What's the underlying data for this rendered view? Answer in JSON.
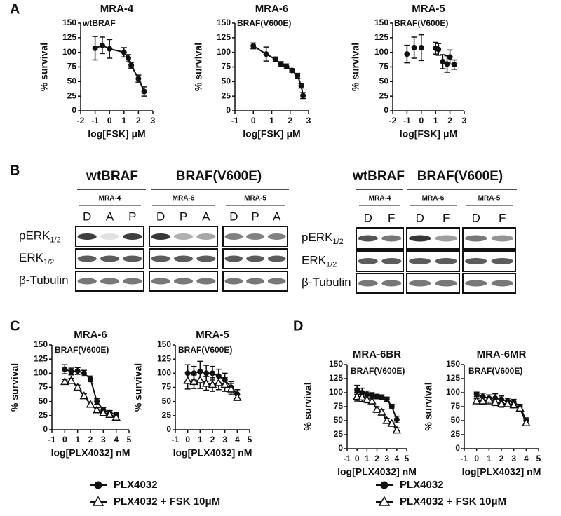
{
  "panel_labels": [
    "A",
    "B",
    "C",
    "D"
  ],
  "chart_data": [
    {
      "type": "line",
      "title": "MRA-4",
      "subtitle": "wtBRAF",
      "xlabel": "log[FSK] μM",
      "ylabel": "% survival",
      "xlim": [
        -2,
        3
      ],
      "xticks": [
        -2,
        -1,
        0,
        1,
        2,
        3
      ],
      "ylim": [
        0,
        150
      ],
      "yticks": [
        0,
        25,
        50,
        75,
        100,
        125,
        150
      ],
      "x": [
        -1,
        -0.5,
        0,
        1,
        1.3,
        1.5,
        2,
        2.4
      ],
      "values": [
        107,
        112,
        106,
        100,
        90,
        78,
        55,
        33
      ],
      "errors": [
        20,
        14,
        16,
        8,
        6,
        5,
        6,
        8
      ],
      "color": "#111111"
    },
    {
      "type": "line",
      "title": "MRA-6",
      "subtitle": "BRAF(V600E)",
      "xlabel": "log[FSK] μM",
      "ylabel": "% survival",
      "xlim": [
        -1,
        3
      ],
      "xticks": [
        -1,
        0,
        1,
        2,
        3
      ],
      "ylim": [
        0,
        150
      ],
      "yticks": [
        0,
        25,
        50,
        75,
        100,
        125,
        150
      ],
      "x": [
        0,
        0.7,
        1.2,
        1.5,
        1.8,
        2.1,
        2.4,
        2.6,
        2.7
      ],
      "values": [
        111,
        97,
        88,
        80,
        76,
        69,
        60,
        43,
        26
      ],
      "errors": [
        5,
        12,
        4,
        4,
        4,
        3,
        4,
        4,
        5
      ],
      "color": "#111111"
    },
    {
      "type": "scatter",
      "title": "MRA-5",
      "subtitle": "BRAF(V600E)",
      "xlabel": "log[FSK] μM",
      "ylabel": "% survival",
      "xlim": [
        -2,
        3
      ],
      "xticks": [
        -2,
        -1,
        0,
        1,
        2,
        3
      ],
      "ylim": [
        0,
        150
      ],
      "yticks": [
        0,
        25,
        50,
        75,
        100,
        125,
        150
      ],
      "x": [
        -1,
        -0.5,
        0,
        1,
        1.2,
        1.5,
        1.8,
        2,
        2.3
      ],
      "values": [
        97,
        108,
        108,
        107,
        105,
        84,
        80,
        92,
        79
      ],
      "errors": [
        15,
        18,
        22,
        10,
        10,
        12,
        14,
        12,
        8
      ],
      "color": "#111111"
    },
    {
      "type": "line",
      "title": "MRA-6",
      "subtitle": "BRAF(V600E)",
      "xlabel": "log[PLX4032] nM",
      "ylabel": "% survival",
      "xlim": [
        -1,
        5
      ],
      "xticks": [
        -1,
        0,
        1,
        2,
        3,
        4,
        5
      ],
      "ylim": [
        0,
        150
      ],
      "yticks": [
        0,
        25,
        50,
        75,
        100,
        125,
        150
      ],
      "legend": true,
      "series": [
        {
          "name": "PLX4032",
          "marker": "circle",
          "color": "#111111",
          "x": [
            0,
            0.5,
            1,
            1.5,
            2,
            2.5,
            3,
            3.5,
            4
          ],
          "values": [
            107,
            103,
            104,
            100,
            90,
            50,
            35,
            30,
            27
          ],
          "errors": [
            8,
            6,
            6,
            5,
            5,
            5,
            4,
            4,
            4
          ]
        },
        {
          "name": "PLX4032 + FSK 10μM",
          "marker": "triangle",
          "color": "#111111",
          "x": [
            0,
            0.5,
            1,
            1.5,
            2,
            2.5,
            3,
            3.5,
            4
          ],
          "values": [
            85,
            87,
            75,
            60,
            45,
            35,
            30,
            27,
            22
          ],
          "errors": [
            4,
            4,
            4,
            4,
            4,
            4,
            4,
            4,
            4
          ]
        }
      ]
    },
    {
      "type": "line",
      "title": "MRA-5",
      "subtitle": "BRAF(V600E)",
      "xlabel": "log[PLX4032] nM",
      "ylabel": "% survival",
      "xlim": [
        -1,
        5
      ],
      "xticks": [
        -1,
        0,
        1,
        2,
        3,
        4,
        5
      ],
      "ylim": [
        0,
        150
      ],
      "yticks": [
        0,
        25,
        50,
        75,
        100,
        125,
        150
      ],
      "series": [
        {
          "name": "PLX4032",
          "marker": "circle",
          "color": "#111111",
          "x": [
            0,
            0.5,
            1,
            1.5,
            2,
            2.5,
            3,
            3.5,
            4
          ],
          "values": [
            100,
            100,
            103,
            100,
            100,
            95,
            88,
            75,
            63
          ],
          "errors": [
            15,
            12,
            18,
            14,
            12,
            12,
            12,
            10,
            8
          ]
        },
        {
          "name": "PLX4032 + FSK 10μM",
          "marker": "triangle",
          "color": "#111111",
          "x": [
            0,
            0.5,
            1,
            1.5,
            2,
            2.5,
            3,
            3.5,
            4
          ],
          "values": [
            87,
            85,
            88,
            82,
            80,
            83,
            80,
            72,
            57
          ],
          "errors": [
            15,
            12,
            15,
            12,
            12,
            12,
            12,
            10,
            5
          ]
        }
      ]
    },
    {
      "type": "line",
      "title": "MRA-6BR",
      "subtitle": "BRAF(V600E)",
      "xlabel": "log[PLX4032] nM",
      "ylabel": "% survival",
      "xlim": [
        -1,
        5
      ],
      "xticks": [
        -1,
        0,
        1,
        2,
        3,
        4,
        5
      ],
      "ylim": [
        0,
        150
      ],
      "yticks": [
        0,
        25,
        50,
        75,
        100,
        125,
        150
      ],
      "legend": true,
      "series": [
        {
          "name": "PLX4032",
          "marker": "circle",
          "color": "#111111",
          "x": [
            0,
            0.5,
            1,
            1.5,
            2,
            2.5,
            3,
            3.5,
            4
          ],
          "values": [
            105,
            100,
            97,
            95,
            93,
            92,
            88,
            75,
            52
          ],
          "errors": [
            8,
            8,
            6,
            5,
            4,
            4,
            4,
            4,
            6
          ]
        },
        {
          "name": "PLX4032 + FSK 10μM",
          "marker": "triangle",
          "color": "#111111",
          "x": [
            0,
            0.5,
            1,
            1.5,
            2,
            2.5,
            3,
            3.5,
            4
          ],
          "values": [
            93,
            92,
            88,
            85,
            70,
            65,
            50,
            45,
            33
          ],
          "errors": [
            8,
            8,
            6,
            5,
            5,
            5,
            4,
            4,
            4
          ]
        }
      ]
    },
    {
      "type": "line",
      "title": "MRA-6MR",
      "subtitle": "BRAF(V600E)",
      "xlabel": "log[PLX4032] nM",
      "ylabel": "% survival",
      "xlim": [
        -1,
        5
      ],
      "xticks": [
        -1,
        0,
        1,
        2,
        3,
        4,
        5
      ],
      "ylim": [
        0,
        150
      ],
      "yticks": [
        0,
        25,
        50,
        75,
        100,
        125,
        150
      ],
      "series": [
        {
          "name": "PLX4032",
          "marker": "circle",
          "color": "#111111",
          "x": [
            0,
            0.5,
            1,
            1.5,
            2,
            2.5,
            3,
            3.5,
            4
          ],
          "values": [
            97,
            93,
            90,
            90,
            88,
            85,
            83,
            75,
            50
          ],
          "errors": [
            4,
            6,
            6,
            8,
            6,
            5,
            5,
            4,
            5
          ]
        },
        {
          "name": "PLX4032 + FSK 10μM",
          "marker": "triangle",
          "color": "#111111",
          "x": [
            0,
            0.5,
            1,
            1.5,
            2,
            2.5,
            3,
            3.5,
            4
          ],
          "values": [
            85,
            85,
            88,
            83,
            80,
            80,
            78,
            72,
            46
          ],
          "errors": [
            4,
            6,
            8,
            6,
            6,
            5,
            5,
            4,
            5
          ]
        }
      ]
    }
  ],
  "blot": {
    "left": {
      "headers": [
        "wtBRAF",
        "BRAF(V600E)"
      ],
      "lines": [
        {
          "name": "MRA-4",
          "lanes": [
            "D",
            "A",
            "P"
          ]
        },
        {
          "name": "MRA-6",
          "lanes": [
            "D",
            "P",
            "A"
          ]
        },
        {
          "name": "MRA-5",
          "lanes": [
            "D",
            "P",
            "A"
          ]
        }
      ],
      "rows": [
        {
          "text": "pERK",
          "sub": "1/2"
        },
        {
          "text": "ERK",
          "sub": "1/2"
        },
        {
          "text": "β-Tubulin"
        }
      ]
    },
    "right": {
      "headers": [
        "wtBRAF",
        "BRAF(V600E)"
      ],
      "lines": [
        {
          "name": "MRA-4",
          "lanes": [
            "D",
            "F"
          ]
        },
        {
          "name": "MRA-6",
          "lanes": [
            "D",
            "F"
          ]
        },
        {
          "name": "MRA-5",
          "lanes": [
            "D",
            "F"
          ]
        }
      ],
      "rows": [
        {
          "text": "pERK",
          "sub": "1/2"
        },
        {
          "text": "ERK",
          "sub": "1/2"
        },
        {
          "text": "β-Tubulin"
        }
      ]
    }
  }
}
